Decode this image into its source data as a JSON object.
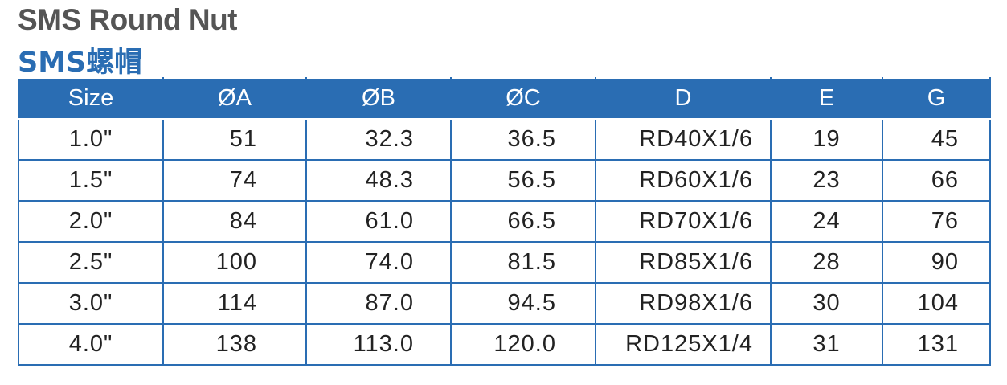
{
  "header": {
    "title": "SMS Round Nut",
    "subtitle": "SMS螺帽"
  },
  "table": {
    "columns": [
      "Size",
      "ØA",
      "ØB",
      "ØC",
      "D",
      "E",
      "G"
    ],
    "rows": [
      [
        "1.0\"",
        "51",
        "32.3",
        "36.5",
        "RD40X1/6",
        "19",
        "45"
      ],
      [
        "1.5\"",
        "74",
        "48.3",
        "56.5",
        "RD60X1/6",
        "23",
        "66"
      ],
      [
        "2.0\"",
        "84",
        "61.0",
        "66.5",
        "RD70X1/6",
        "24",
        "76"
      ],
      [
        "2.5\"",
        "100",
        "74.0",
        "81.5",
        "RD85X1/6",
        "28",
        "90"
      ],
      [
        "3.0\"",
        "114",
        "87.0",
        "94.5",
        "RD98X1/6",
        "30",
        "104"
      ],
      [
        "4.0\"",
        "138",
        "113.0",
        "120.0",
        "RD125X1/4",
        "31",
        "131"
      ]
    ]
  }
}
